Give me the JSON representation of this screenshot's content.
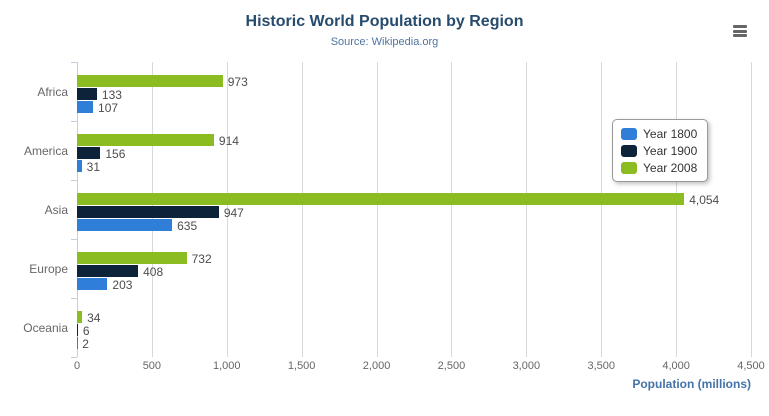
{
  "title": "Historic World Population by Region",
  "subtitle": "Source: Wikipedia.org",
  "menu": {
    "icon": "hamburger-menu-icon",
    "tooltip": "chart context menu"
  },
  "colors": {
    "title": "#274b6d",
    "subtitle": "#4d759e",
    "axis_title": "#4572a7",
    "gridline": "#d8d8d8",
    "axis_line": "#c0d0e0",
    "tick_labels": "#666666",
    "value_labels": "#4d4d4d"
  },
  "chart_data": {
    "type": "bar",
    "orientation": "horizontal",
    "title": "Historic World Population by Region",
    "subtitle": "Source: Wikipedia.org",
    "categories": [
      "Africa",
      "America",
      "Asia",
      "Europe",
      "Oceania"
    ],
    "series": [
      {
        "name": "Year 1800",
        "color": "#2f7ed8",
        "values": [
          107,
          31,
          635,
          203,
          2
        ]
      },
      {
        "name": "Year 1900",
        "color": "#0d233a",
        "values": [
          133,
          156,
          947,
          408,
          6
        ]
      },
      {
        "name": "Year 2008",
        "color": "#8bbc21",
        "values": [
          973,
          914,
          4054,
          732,
          34
        ]
      }
    ],
    "series_draw_order_top_to_bottom": [
      "Year 2008",
      "Year 1900",
      "Year 1800"
    ],
    "data_labels": true,
    "data_label_format": "thousands-separated",
    "xlabel": "Population (millions)",
    "ylabel": "",
    "xlim": [
      0,
      4500
    ],
    "xticks": [
      0,
      500,
      1000,
      1500,
      2000,
      2500,
      3000,
      3500,
      4000,
      4500
    ],
    "grid": true,
    "legend_position": "right-upper",
    "legend_entries": [
      "Year 1800",
      "Year 1900",
      "Year 2008"
    ]
  }
}
